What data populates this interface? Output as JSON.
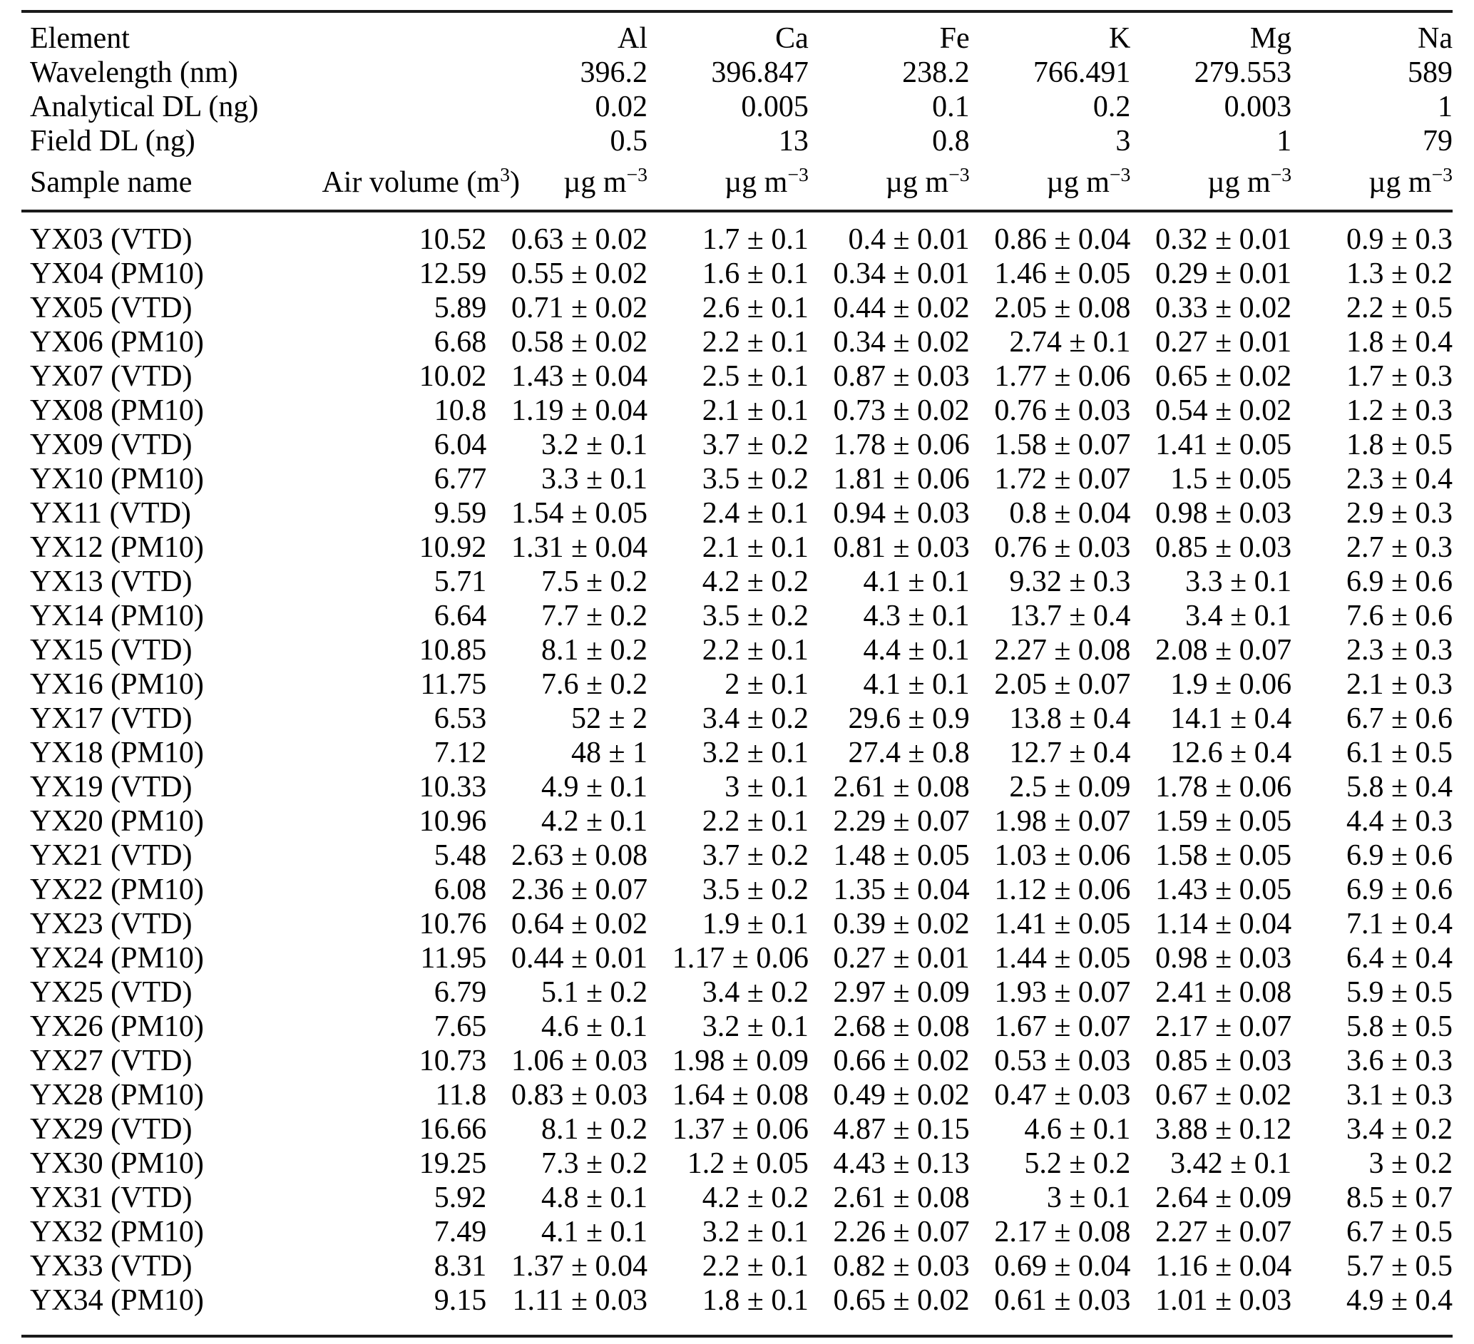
{
  "table": {
    "header_rows": [
      {
        "key": "element",
        "label": "Element",
        "values": [
          "Al",
          "Ca",
          "Fe",
          "K",
          "Mg",
          "Na"
        ]
      },
      {
        "key": "wavelength",
        "label": "Wavelength (nm)",
        "values": [
          "396.2",
          "396.847",
          "238.2",
          "766.491",
          "279.553",
          "589"
        ]
      },
      {
        "key": "analytical-dl",
        "label": "Analytical DL (ng)",
        "values": [
          "0.02",
          "0.005",
          "0.1",
          "0.2",
          "0.003",
          "1"
        ]
      },
      {
        "key": "field-dl",
        "label": "Field DL (ng)",
        "values": [
          "0.5",
          "13",
          "0.8",
          "3",
          "1",
          "79"
        ]
      }
    ],
    "columns_row": {
      "sample_label": "Sample name",
      "air_volume_base": "Air volume (m",
      "air_volume_sup": "3",
      "air_volume_close": ")",
      "unit_base": "µg m",
      "unit_sup": "−3"
    },
    "rows": [
      {
        "sample": "YX03 (VTD)",
        "air_volume": "10.52",
        "values": [
          "0.63 ± 0.02",
          "1.7 ± 0.1",
          "0.4 ± 0.01",
          "0.86 ± 0.04",
          "0.32 ± 0.01",
          "0.9 ± 0.3"
        ]
      },
      {
        "sample": "YX04 (PM10)",
        "air_volume": "12.59",
        "values": [
          "0.55 ± 0.02",
          "1.6 ± 0.1",
          "0.34 ± 0.01",
          "1.46 ± 0.05",
          "0.29 ± 0.01",
          "1.3 ± 0.2"
        ]
      },
      {
        "sample": "YX05 (VTD)",
        "air_volume": "5.89",
        "values": [
          "0.71 ± 0.02",
          "2.6 ± 0.1",
          "0.44 ± 0.02",
          "2.05 ± 0.08",
          "0.33 ± 0.02",
          "2.2 ± 0.5"
        ]
      },
      {
        "sample": "YX06 (PM10)",
        "air_volume": "6.68",
        "values": [
          "0.58 ± 0.02",
          "2.2 ± 0.1",
          "0.34 ± 0.02",
          "2.74 ± 0.1",
          "0.27 ± 0.01",
          "1.8 ± 0.4"
        ]
      },
      {
        "sample": "YX07 (VTD)",
        "air_volume": "10.02",
        "values": [
          "1.43 ± 0.04",
          "2.5 ± 0.1",
          "0.87 ± 0.03",
          "1.77 ± 0.06",
          "0.65 ± 0.02",
          "1.7 ± 0.3"
        ]
      },
      {
        "sample": "YX08 (PM10)",
        "air_volume": "10.8",
        "values": [
          "1.19 ± 0.04",
          "2.1 ± 0.1",
          "0.73 ± 0.02",
          "0.76 ± 0.03",
          "0.54 ± 0.02",
          "1.2 ± 0.3"
        ]
      },
      {
        "sample": "YX09 (VTD)",
        "air_volume": "6.04",
        "values": [
          "3.2 ± 0.1",
          "3.7 ± 0.2",
          "1.78 ± 0.06",
          "1.58 ± 0.07",
          "1.41 ± 0.05",
          "1.8 ± 0.5"
        ]
      },
      {
        "sample": "YX10 (PM10)",
        "air_volume": "6.77",
        "values": [
          "3.3 ± 0.1",
          "3.5 ± 0.2",
          "1.81 ± 0.06",
          "1.72 ± 0.07",
          "1.5 ± 0.05",
          "2.3 ± 0.4"
        ]
      },
      {
        "sample": "YX11 (VTD)",
        "air_volume": "9.59",
        "values": [
          "1.54 ± 0.05",
          "2.4 ± 0.1",
          "0.94 ± 0.03",
          "0.8 ± 0.04",
          "0.98 ± 0.03",
          "2.9 ± 0.3"
        ]
      },
      {
        "sample": "YX12 (PM10)",
        "air_volume": "10.92",
        "values": [
          "1.31 ± 0.04",
          "2.1 ± 0.1",
          "0.81 ± 0.03",
          "0.76 ± 0.03",
          "0.85 ± 0.03",
          "2.7 ± 0.3"
        ]
      },
      {
        "sample": "YX13 (VTD)",
        "air_volume": "5.71",
        "values": [
          "7.5 ± 0.2",
          "4.2 ± 0.2",
          "4.1 ± 0.1",
          "9.32 ± 0.3",
          "3.3 ± 0.1",
          "6.9 ± 0.6"
        ]
      },
      {
        "sample": "YX14 (PM10)",
        "air_volume": "6.64",
        "values": [
          "7.7 ± 0.2",
          "3.5 ± 0.2",
          "4.3 ± 0.1",
          "13.7 ± 0.4",
          "3.4 ± 0.1",
          "7.6 ± 0.6"
        ]
      },
      {
        "sample": "YX15 (VTD)",
        "air_volume": "10.85",
        "values": [
          "8.1 ± 0.2",
          "2.2 ± 0.1",
          "4.4 ± 0.1",
          "2.27 ± 0.08",
          "2.08 ± 0.07",
          "2.3 ± 0.3"
        ]
      },
      {
        "sample": "YX16 (PM10)",
        "air_volume": "11.75",
        "values": [
          "7.6 ± 0.2",
          "2 ± 0.1",
          "4.1 ± 0.1",
          "2.05 ± 0.07",
          "1.9 ± 0.06",
          "2.1 ± 0.3"
        ]
      },
      {
        "sample": "YX17 (VTD)",
        "air_volume": "6.53",
        "values": [
          "52 ± 2",
          "3.4 ± 0.2",
          "29.6 ± 0.9",
          "13.8 ± 0.4",
          "14.1 ± 0.4",
          "6.7 ± 0.6"
        ]
      },
      {
        "sample": "YX18 (PM10)",
        "air_volume": "7.12",
        "values": [
          "48 ± 1",
          "3.2 ± 0.1",
          "27.4 ± 0.8",
          "12.7 ± 0.4",
          "12.6 ± 0.4",
          "6.1 ± 0.5"
        ]
      },
      {
        "sample": "YX19 (VTD)",
        "air_volume": "10.33",
        "values": [
          "4.9 ± 0.1",
          "3 ± 0.1",
          "2.61 ± 0.08",
          "2.5 ± 0.09",
          "1.78 ± 0.06",
          "5.8 ± 0.4"
        ]
      },
      {
        "sample": "YX20 (PM10)",
        "air_volume": "10.96",
        "values": [
          "4.2 ± 0.1",
          "2.2 ± 0.1",
          "2.29 ± 0.07",
          "1.98 ± 0.07",
          "1.59 ± 0.05",
          "4.4 ± 0.3"
        ]
      },
      {
        "sample": "YX21 (VTD)",
        "air_volume": "5.48",
        "values": [
          "2.63 ± 0.08",
          "3.7 ± 0.2",
          "1.48 ± 0.05",
          "1.03 ± 0.06",
          "1.58 ± 0.05",
          "6.9 ± 0.6"
        ]
      },
      {
        "sample": "YX22 (PM10)",
        "air_volume": "6.08",
        "values": [
          "2.36 ± 0.07",
          "3.5 ± 0.2",
          "1.35 ± 0.04",
          "1.12 ± 0.06",
          "1.43 ± 0.05",
          "6.9 ± 0.6"
        ]
      },
      {
        "sample": "YX23 (VTD)",
        "air_volume": "10.76",
        "values": [
          "0.64 ± 0.02",
          "1.9 ± 0.1",
          "0.39 ± 0.02",
          "1.41 ± 0.05",
          "1.14 ± 0.04",
          "7.1 ± 0.4"
        ]
      },
      {
        "sample": "YX24 (PM10)",
        "air_volume": "11.95",
        "values": [
          "0.44 ± 0.01",
          "1.17 ± 0.06",
          "0.27 ± 0.01",
          "1.44 ± 0.05",
          "0.98 ± 0.03",
          "6.4 ± 0.4"
        ]
      },
      {
        "sample": "YX25 (VTD)",
        "air_volume": "6.79",
        "values": [
          "5.1 ± 0.2",
          "3.4 ± 0.2",
          "2.97 ± 0.09",
          "1.93 ± 0.07",
          "2.41 ± 0.08",
          "5.9 ± 0.5"
        ]
      },
      {
        "sample": "YX26 (PM10)",
        "air_volume": "7.65",
        "values": [
          "4.6 ± 0.1",
          "3.2 ± 0.1",
          "2.68 ± 0.08",
          "1.67 ± 0.07",
          "2.17 ± 0.07",
          "5.8 ± 0.5"
        ]
      },
      {
        "sample": "YX27 (VTD)",
        "air_volume": "10.73",
        "values": [
          "1.06 ± 0.03",
          "1.98 ± 0.09",
          "0.66 ± 0.02",
          "0.53 ± 0.03",
          "0.85 ± 0.03",
          "3.6 ± 0.3"
        ]
      },
      {
        "sample": "YX28 (PM10)",
        "air_volume": "11.8",
        "values": [
          "0.83 ± 0.03",
          "1.64 ± 0.08",
          "0.49 ± 0.02",
          "0.47 ± 0.03",
          "0.67 ± 0.02",
          "3.1 ± 0.3"
        ]
      },
      {
        "sample": "YX29 (VTD)",
        "air_volume": "16.66",
        "values": [
          "8.1 ± 0.2",
          "1.37 ± 0.06",
          "4.87 ± 0.15",
          "4.6 ± 0.1",
          "3.88 ± 0.12",
          "3.4 ± 0.2"
        ]
      },
      {
        "sample": "YX30 (PM10)",
        "air_volume": "19.25",
        "values": [
          "7.3 ± 0.2",
          "1.2 ± 0.05",
          "4.43 ± 0.13",
          "5.2 ± 0.2",
          "3.42 ± 0.1",
          "3 ± 0.2"
        ]
      },
      {
        "sample": "YX31 (VTD)",
        "air_volume": "5.92",
        "values": [
          "4.8 ± 0.1",
          "4.2 ± 0.2",
          "2.61 ± 0.08",
          "3 ± 0.1",
          "2.64 ± 0.09",
          "8.5 ± 0.7"
        ]
      },
      {
        "sample": "YX32 (PM10)",
        "air_volume": "7.49",
        "values": [
          "4.1 ± 0.1",
          "3.2 ± 0.1",
          "2.26 ± 0.07",
          "2.17 ± 0.08",
          "2.27 ± 0.07",
          "6.7 ± 0.5"
        ]
      },
      {
        "sample": "YX33 (VTD)",
        "air_volume": "8.31",
        "values": [
          "1.37 ± 0.04",
          "2.2 ± 0.1",
          "0.82 ± 0.03",
          "0.69 ± 0.04",
          "1.16 ± 0.04",
          "5.7 ± 0.5"
        ]
      },
      {
        "sample": "YX34 (PM10)",
        "air_volume": "9.15",
        "values": [
          "1.11 ± 0.03",
          "1.8 ± 0.1",
          "0.65 ± 0.02",
          "0.61 ± 0.03",
          "1.01 ± 0.03",
          "4.9 ± 0.4"
        ]
      }
    ]
  },
  "colors": {
    "background": "#ffffff",
    "text": "#000000",
    "rule": "#1a1a1a"
  }
}
